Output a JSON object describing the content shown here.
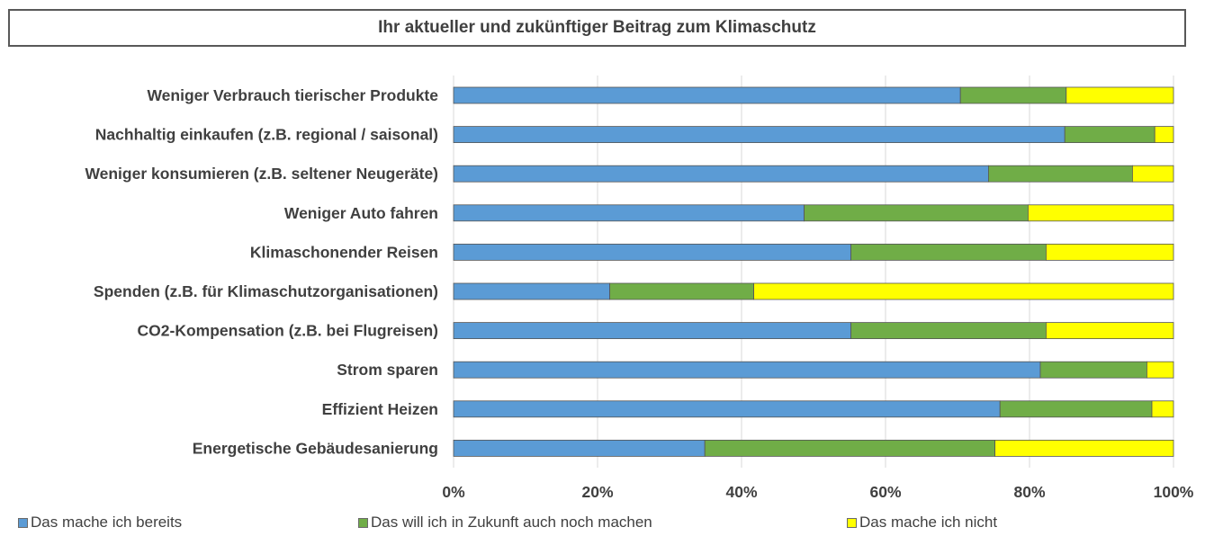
{
  "chart_data": {
    "type": "bar",
    "orientation": "horizontal",
    "stacked": "percent",
    "title": "Ihr aktueller und zukünftiger Beitrag zum Klimaschutz",
    "categories": [
      "Weniger Verbrauch tierischer Produkte",
      "Nachhaltig einkaufen (z.B. regional / saisonal)",
      "Weniger konsumieren (z.B. seltener Neugeräte)",
      "Weniger Auto fahren",
      "Klimaschonender Reisen",
      "Spenden (z.B. für Klimaschutzorganisationen)",
      "CO2-Kompensation (z.B. bei Flugreisen)",
      "Strom sparen",
      "Effizient Heizen",
      "Energetische Gebäudesanierung"
    ],
    "series": [
      {
        "name": "Das mache ich bereits",
        "color": "#5b9bd5",
        "values": [
          70.4,
          84.9,
          74.3,
          48.7,
          55.2,
          21.7,
          55.2,
          81.5,
          75.9,
          34.9
        ]
      },
      {
        "name": "Das will ich in Zukunft auch noch machen",
        "color": "#70ad47",
        "values": [
          14.7,
          12.5,
          20.0,
          31.1,
          27.1,
          20.0,
          27.1,
          14.8,
          21.1,
          40.3
        ]
      },
      {
        "name": "Das mache ich nicht",
        "color": "#ffff00",
        "values": [
          14.9,
          2.6,
          5.7,
          20.2,
          17.7,
          58.3,
          17.7,
          3.7,
          3.0,
          24.8
        ]
      }
    ],
    "xaxis": {
      "ticks": [
        "0%",
        "20%",
        "40%",
        "60%",
        "80%",
        "100%"
      ],
      "tick_values": [
        0,
        20,
        40,
        60,
        80,
        100
      ],
      "range": [
        0,
        100
      ]
    },
    "gridlines": true,
    "legend_position": "bottom"
  }
}
